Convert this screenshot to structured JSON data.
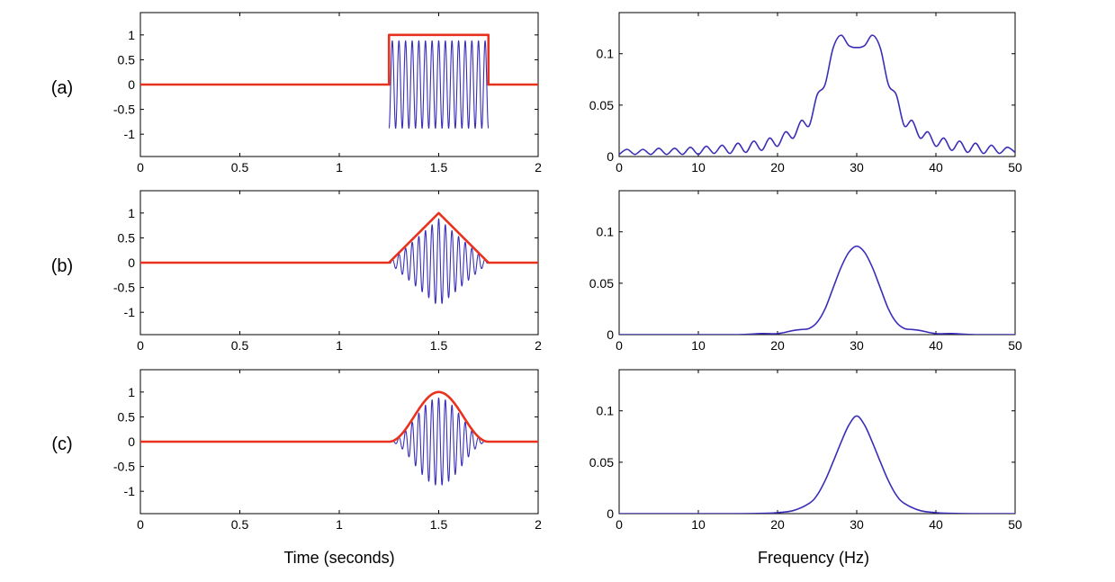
{
  "figure": {
    "xlabel_time": "Time (seconds)",
    "xlabel_freq": "Frequency (Hz)"
  },
  "colors": {
    "envelope": "#e8321e",
    "signal": "#3a2eb8",
    "axes": "#000000"
  },
  "chart_data": [
    {
      "id": "a-time",
      "row_label": "(a)",
      "type": "line",
      "xlim": [
        0,
        2
      ],
      "ylim": [
        -1.45,
        1.45
      ],
      "xticks": [
        0,
        0.5,
        1,
        1.5,
        2
      ],
      "xtick_labels": [
        "0",
        "0.5",
        "1",
        "1.5",
        "2"
      ],
      "yticks": [
        1,
        0.5,
        0,
        -0.5,
        -1
      ],
      "ytick_labels": [
        "1",
        "0.5",
        "0",
        "-0.5",
        "-1"
      ],
      "window": "rectangular",
      "window_start": 1.25,
      "window_end": 1.75,
      "carrier_hz": 30,
      "amplitude": 1,
      "series": [
        {
          "role": "envelope"
        },
        {
          "role": "signal"
        }
      ]
    },
    {
      "id": "a-freq",
      "type": "line",
      "xlim": [
        0,
        50
      ],
      "ylim": [
        0,
        0.14
      ],
      "xticks": [
        0,
        10,
        20,
        30,
        40,
        50
      ],
      "xtick_labels": [
        "0",
        "10",
        "20",
        "30",
        "40",
        "50"
      ],
      "yticks": [
        0.1,
        0.05,
        0
      ],
      "ytick_labels": [
        "0.1",
        "0.05",
        "0"
      ],
      "x": [
        0,
        1,
        2,
        3,
        4,
        5,
        6,
        7,
        8,
        9,
        10,
        11,
        12,
        13,
        14,
        15,
        16,
        17,
        18,
        19,
        20,
        21,
        22,
        23,
        24,
        25,
        26,
        27,
        28,
        29,
        30,
        31,
        32,
        33,
        34,
        35,
        36,
        37,
        38,
        39,
        40,
        41,
        42,
        43,
        44,
        45,
        46,
        47,
        48,
        49,
        50
      ],
      "y": [
        0.002,
        0.007,
        0.002,
        0.007,
        0.002,
        0.008,
        0.002,
        0.008,
        0.002,
        0.009,
        0.002,
        0.01,
        0.003,
        0.011,
        0.003,
        0.013,
        0.004,
        0.015,
        0.006,
        0.018,
        0.01,
        0.024,
        0.018,
        0.035,
        0.03,
        0.06,
        0.07,
        0.105,
        0.118,
        0.108,
        0.106,
        0.108,
        0.118,
        0.105,
        0.07,
        0.06,
        0.03,
        0.035,
        0.018,
        0.024,
        0.01,
        0.018,
        0.006,
        0.015,
        0.004,
        0.013,
        0.003,
        0.011,
        0.003,
        0.009,
        0.004
      ]
    },
    {
      "id": "b-time",
      "row_label": "(b)",
      "type": "line",
      "xlim": [
        0,
        2
      ],
      "ylim": [
        -1.45,
        1.45
      ],
      "xticks": [
        0,
        0.5,
        1,
        1.5,
        2
      ],
      "xtick_labels": [
        "0",
        "0.5",
        "1",
        "1.5",
        "2"
      ],
      "yticks": [
        1,
        0.5,
        0,
        -0.5,
        -1
      ],
      "ytick_labels": [
        "1",
        "0.5",
        "0",
        "-0.5",
        "-1"
      ],
      "window": "triangular",
      "window_start": 1.25,
      "window_end": 1.75,
      "carrier_hz": 30,
      "amplitude": 1,
      "series": [
        {
          "role": "envelope"
        },
        {
          "role": "signal"
        }
      ]
    },
    {
      "id": "b-freq",
      "type": "line",
      "xlim": [
        0,
        50
      ],
      "ylim": [
        0,
        0.14
      ],
      "xticks": [
        0,
        10,
        20,
        30,
        40,
        50
      ],
      "xtick_labels": [
        "0",
        "10",
        "20",
        "30",
        "40",
        "50"
      ],
      "yticks": [
        0.1,
        0.05,
        0
      ],
      "ytick_labels": [
        "0.1",
        "0.05",
        "0"
      ],
      "x": [
        0,
        5,
        10,
        15,
        18,
        20,
        22,
        23,
        24,
        25,
        26,
        27,
        28,
        29,
        30,
        31,
        32,
        33,
        34,
        35,
        36,
        37,
        38,
        40,
        42,
        45,
        50
      ],
      "y": [
        0,
        0,
        0,
        0,
        0.001,
        0.001,
        0.004,
        0.005,
        0.006,
        0.012,
        0.025,
        0.045,
        0.065,
        0.08,
        0.086,
        0.08,
        0.065,
        0.045,
        0.025,
        0.012,
        0.006,
        0.005,
        0.004,
        0.001,
        0.001,
        0,
        0
      ]
    },
    {
      "id": "c-time",
      "row_label": "(c)",
      "type": "line",
      "xlim": [
        0,
        2
      ],
      "ylim": [
        -1.45,
        1.45
      ],
      "xticks": [
        0,
        0.5,
        1,
        1.5,
        2
      ],
      "xtick_labels": [
        "0",
        "0.5",
        "1",
        "1.5",
        "2"
      ],
      "yticks": [
        1,
        0.5,
        0,
        -0.5,
        -1
      ],
      "ytick_labels": [
        "1",
        "0.5",
        "0",
        "-0.5",
        "-1"
      ],
      "window": "hann",
      "window_start": 1.25,
      "window_end": 1.75,
      "carrier_hz": 30,
      "amplitude": 1,
      "series": [
        {
          "role": "envelope"
        },
        {
          "role": "signal"
        }
      ]
    },
    {
      "id": "c-freq",
      "type": "line",
      "xlim": [
        0,
        50
      ],
      "ylim": [
        0,
        0.14
      ],
      "xticks": [
        0,
        10,
        20,
        30,
        40,
        50
      ],
      "xtick_labels": [
        "0",
        "10",
        "20",
        "30",
        "40",
        "50"
      ],
      "yticks": [
        0.1,
        0.05,
        0
      ],
      "ytick_labels": [
        "0.1",
        "0.05",
        "0"
      ],
      "x": [
        0,
        5,
        10,
        15,
        18,
        20,
        22,
        24,
        25,
        26,
        27,
        28,
        29,
        30,
        31,
        32,
        33,
        34,
        35,
        36,
        38,
        40,
        42,
        45,
        50
      ],
      "y": [
        0,
        0,
        0,
        0,
        0.0003,
        0.001,
        0.003,
        0.01,
        0.018,
        0.032,
        0.05,
        0.069,
        0.086,
        0.095,
        0.086,
        0.069,
        0.05,
        0.032,
        0.018,
        0.01,
        0.003,
        0.001,
        0.0003,
        0,
        0
      ]
    }
  ]
}
